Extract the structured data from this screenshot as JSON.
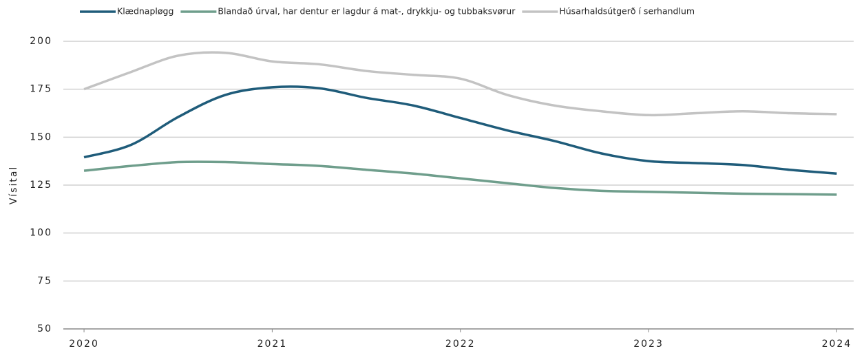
{
  "chart_data": {
    "type": "line",
    "y_label": "Vísital",
    "x": [
      2020,
      2020.25,
      2020.5,
      2020.75,
      2021,
      2021.25,
      2021.5,
      2021.75,
      2022,
      2022.25,
      2022.5,
      2022.75,
      2023,
      2023.25,
      2023.5,
      2023.75,
      2024
    ],
    "series": [
      {
        "name": "Klædnapløgg",
        "color": "#1f5c7a",
        "values": [
          139.5,
          146,
          160.5,
          172,
          176,
          175.5,
          170.5,
          166.5,
          160,
          153.5,
          148,
          141.5,
          137.5,
          136.5,
          135.5,
          133,
          131
        ]
      },
      {
        "name": "Blandað úrval, har dentur er lagdur á mat-, drykkju- og tubbaksvørur",
        "color": "#6f9e8c",
        "values": [
          132.5,
          135,
          137,
          137,
          136,
          135,
          133,
          131,
          128.5,
          126,
          123.5,
          122,
          121.5,
          121,
          120.5,
          120.3,
          120
        ]
      },
      {
        "name": "Húsarhaldsútgerð í serhandlum",
        "color": "#c3c3c3",
        "values": [
          175,
          184,
          192.5,
          194,
          189.5,
          188,
          184.5,
          182.5,
          180.5,
          172,
          166.5,
          163.5,
          161.5,
          162.5,
          163.5,
          162.5,
          162
        ]
      }
    ],
    "xlim": [
      2019.89,
      2024.09
    ],
    "xticks": [
      2020,
      2021,
      2022,
      2023,
      2024
    ],
    "ylim": [
      50,
      200
    ],
    "yticks": [
      50,
      75,
      100,
      125,
      150,
      175,
      200
    ],
    "grid": true,
    "legend": "top"
  }
}
